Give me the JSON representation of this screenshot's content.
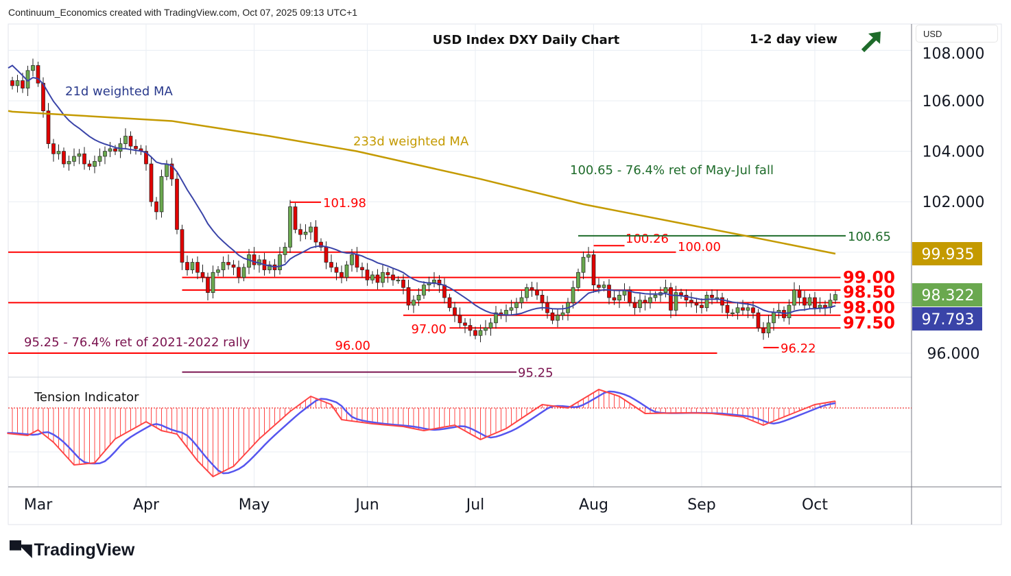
{
  "header": "Continuum_Economics created with TradingView.com, Oct 07, 2025 09:13 UTC+1",
  "brand": "TradingView",
  "currency_button": "USD",
  "chart_data": {
    "type": "candlestick",
    "title": "USD Index DXY Daily Chart",
    "view": "1-2 day view",
    "view_direction": "up",
    "y_ticks": [
      "108.000",
      "106.000",
      "104.000",
      "102.000",
      "100.000",
      "96.000"
    ],
    "y_tick_values": [
      108,
      106,
      104,
      102,
      100,
      96
    ],
    "x_ticks": [
      {
        "label": "Mar",
        "bar": 5
      },
      {
        "label": "Apr",
        "bar": 26
      },
      {
        "label": "May",
        "bar": 47
      },
      {
        "label": "Jun",
        "bar": 69
      },
      {
        "label": "Jul",
        "bar": 90
      },
      {
        "label": "Aug",
        "bar": 113
      },
      {
        "label": "Sep",
        "bar": 134
      },
      {
        "label": "Oct",
        "bar": 156
      }
    ],
    "ylim": [
      95,
      108.3
    ],
    "closes": [
      106.6,
      106.8,
      106.5,
      107.2,
      107.4,
      106.7,
      105.6,
      104.3,
      103.9,
      104.0,
      103.5,
      103.6,
      103.8,
      103.9,
      103.5,
      103.4,
      103.6,
      103.8,
      104.0,
      104.1,
      104.0,
      104.3,
      104.6,
      104.2,
      104.1,
      104.0,
      103.5,
      102.0,
      101.6,
      103.0,
      103.5,
      102.9,
      100.9,
      99.6,
      99.3,
      99.6,
      99.2,
      99.0,
      98.4,
      99.2,
      99.3,
      99.6,
      99.5,
      99.4,
      99.0,
      99.4,
      99.9,
      99.5,
      99.7,
      99.3,
      99.5,
      99.3,
      99.9,
      100.2,
      101.8,
      100.9,
      100.7,
      100.8,
      101.0,
      100.4,
      100.2,
      99.6,
      99.4,
      99.2,
      99.0,
      99.5,
      99.9,
      99.4,
      99.3,
      98.9,
      99.1,
      98.8,
      99.2,
      99.1,
      98.9,
      98.9,
      98.6,
      97.9,
      98.1,
      98.3,
      98.7,
      98.8,
      98.9,
      98.7,
      98.2,
      97.8,
      97.5,
      97.2,
      97.1,
      96.9,
      96.7,
      96.9,
      97.0,
      97.2,
      97.6,
      97.5,
      97.7,
      97.8,
      98.0,
      98.2,
      98.6,
      98.5,
      98.3,
      98.0,
      97.6,
      97.3,
      97.5,
      97.6,
      98.0,
      98.6,
      99.2,
      99.8,
      99.9,
      98.7,
      98.6,
      98.7,
      98.2,
      98.1,
      98.3,
      98.5,
      98.0,
      97.8,
      98.1,
      98.0,
      98.2,
      98.3,
      98.4,
      98.6,
      97.7,
      98.4,
      98.3,
      98.1,
      98.0,
      97.9,
      97.8,
      98.3,
      98.2,
      98.2,
      97.9,
      97.6,
      97.6,
      97.8,
      97.7,
      97.8,
      97.6,
      97.0,
      96.8,
      97.2,
      97.6,
      97.7,
      97.4,
      97.9,
      98.5,
      98.2,
      97.9,
      98.2,
      97.8,
      97.9,
      97.8,
      98.1,
      98.32
    ],
    "ma233": [
      [
        0,
        105.57
      ],
      [
        31,
        105.2
      ],
      [
        50,
        104.6
      ],
      [
        67,
        104.0
      ],
      [
        91,
        102.9
      ],
      [
        111,
        101.9
      ],
      [
        142,
        100.67
      ],
      [
        160,
        99.94
      ]
    ],
    "series_labels": {
      "ma21": "21d weighted MA",
      "ma233": "233d weighted MA"
    },
    "last_values": {
      "ma233": "99.935",
      "close": "98.322",
      "ma21": "97.793"
    },
    "colors": {
      "up": "#6aa84f",
      "down": "#e00000",
      "ma21": "#3a44a8",
      "ma233": "#c49a00",
      "level": "#ff0000",
      "green": "#1e6b2a",
      "purple": "#7b1450"
    },
    "levels": [
      {
        "price": 100.0,
        "from": -1,
        "to": 129,
        "label": "100.00",
        "color": "level"
      },
      {
        "price": 99.0,
        "from": 33,
        "to": 161,
        "label": "99.00",
        "color": "level"
      },
      {
        "price": 98.5,
        "from": 33,
        "to": 161,
        "label": "98.50",
        "color": "level"
      },
      {
        "price": 98.0,
        "from": -1,
        "to": 161,
        "label": "98.00",
        "color": "level"
      },
      {
        "price": 97.5,
        "from": 76,
        "to": 161,
        "label": "97.50",
        "color": "level"
      },
      {
        "price": 97.0,
        "from": 85,
        "to": 161,
        "label": "97.00",
        "color": "level"
      },
      {
        "price": 96.0,
        "from": -1,
        "to": 137,
        "label": "96.00",
        "color": "level"
      },
      {
        "price": 95.25,
        "from": 33,
        "to": 98,
        "label": "95.25",
        "color": "purple"
      },
      {
        "price": 101.98,
        "from": 54,
        "to": 60,
        "label": "101.98",
        "color": "level"
      },
      {
        "price": 100.26,
        "from": 113,
        "to": 119,
        "label": "100.26",
        "color": "level"
      },
      {
        "price": 96.22,
        "from": 146,
        "to": 149,
        "label": "96.22",
        "color": "level"
      },
      {
        "price": 100.65,
        "from": 110,
        "to": 162,
        "label": "100.65",
        "color": "green"
      }
    ],
    "annotations": [
      "100.65 - 76.4% ret of May-Jul fall",
      "95.25 - 76.4% ret of 2021-2022 rally"
    ],
    "indicator": {
      "title": "Tension Indicator",
      "points": [
        [
          -1,
          -0.37
        ],
        [
          3,
          -0.4
        ],
        [
          5,
          -0.32
        ],
        [
          8,
          -0.5
        ],
        [
          12,
          -0.83
        ],
        [
          16,
          -0.8
        ],
        [
          20,
          -0.45
        ],
        [
          26,
          -0.2
        ],
        [
          29,
          -0.33
        ],
        [
          32,
          -0.38
        ],
        [
          36,
          -0.77
        ],
        [
          39,
          -1.0
        ],
        [
          43,
          -0.85
        ],
        [
          48,
          -0.45
        ],
        [
          54,
          -0.05
        ],
        [
          58,
          0.17
        ],
        [
          62,
          0.05
        ],
        [
          64,
          -0.17
        ],
        [
          70,
          -0.23
        ],
        [
          76,
          -0.27
        ],
        [
          80,
          -0.33
        ],
        [
          86,
          -0.25
        ],
        [
          91,
          -0.46
        ],
        [
          96,
          -0.3
        ],
        [
          103,
          0.05
        ],
        [
          108,
          0.0
        ],
        [
          114,
          0.27
        ],
        [
          118,
          0.17
        ],
        [
          123,
          -0.08
        ],
        [
          131,
          -0.07
        ],
        [
          136,
          -0.08
        ],
        [
          142,
          -0.13
        ],
        [
          146,
          -0.25
        ],
        [
          151,
          -0.1
        ],
        [
          156,
          0.05
        ],
        [
          160,
          0.1
        ]
      ]
    }
  }
}
